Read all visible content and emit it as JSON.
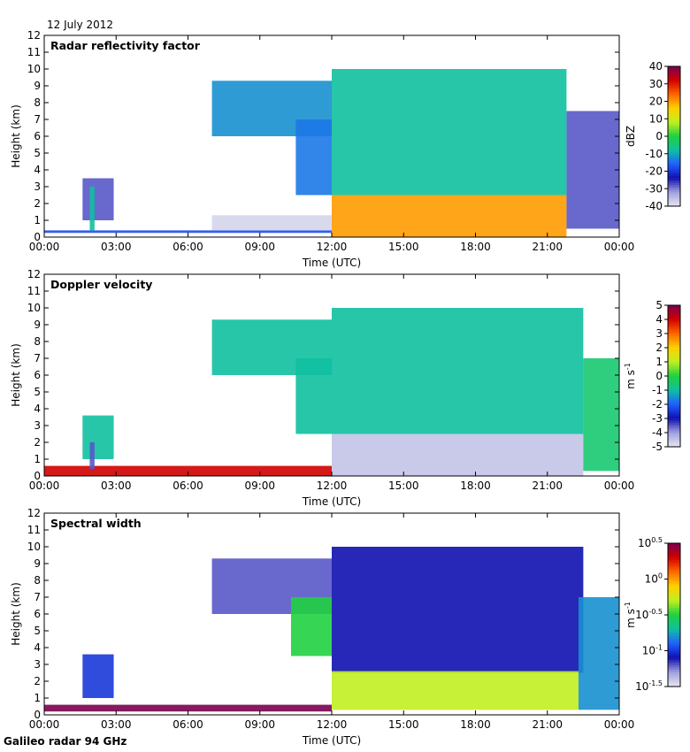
{
  "date_label": "12 July 2012",
  "footer_label": "Galileo radar 94 GHz",
  "chart_data": [
    {
      "type": "heatmap",
      "title": "Radar reflectivity factor",
      "xlabel": "Time (UTC)",
      "ylabel": "Height (km)",
      "x_ticks": [
        "00:00",
        "03:00",
        "06:00",
        "09:00",
        "12:00",
        "15:00",
        "18:00",
        "21:00",
        "00:00"
      ],
      "y_ticks": [
        "0",
        "1",
        "2",
        "3",
        "4",
        "5",
        "6",
        "7",
        "8",
        "9",
        "10",
        "11",
        "12"
      ],
      "ylim": [
        0,
        12
      ],
      "colorbar": {
        "label": "dBZ",
        "ticks": [
          "40",
          "30",
          "20",
          "10",
          "0",
          "-10",
          "-20",
          "-30",
          "-40"
        ],
        "range": [
          -40,
          40
        ],
        "colormap": [
          "#7a0050",
          "#d00000",
          "#ff6600",
          "#ffd000",
          "#c0f020",
          "#20d040",
          "#10c0a0",
          "#2060ff",
          "#1010b0",
          "#a0a0e0",
          "#e6e6f0"
        ]
      },
      "regions": [
        {
          "name": "surface-clutter",
          "t_start": 0.0,
          "t_end": 12.0,
          "h_bottom": 0.25,
          "h_top": 0.4,
          "value": -18
        },
        {
          "name": "clear-air-echo",
          "t_start": 7.0,
          "t_end": 12.0,
          "h_bottom": 0.4,
          "h_top": 1.3,
          "value": -38
        },
        {
          "name": "early-plume",
          "t_start": 1.6,
          "t_end": 2.9,
          "h_bottom": 1.0,
          "h_top": 3.5,
          "value": -28
        },
        {
          "name": "plume-core",
          "t_start": 1.9,
          "t_end": 2.1,
          "h_bottom": 0.4,
          "h_top": 3.0,
          "value": -8
        },
        {
          "name": "upper-cloud",
          "t_start": 7.0,
          "t_end": 12.0,
          "h_bottom": 6.0,
          "h_top": 9.3,
          "value": -12
        },
        {
          "name": "descending-cloud",
          "t_start": 10.5,
          "t_end": 12.0,
          "h_bottom": 2.5,
          "h_top": 7.0,
          "value": -14
        },
        {
          "name": "deep-precipitation",
          "t_start": 12.0,
          "t_end": 21.8,
          "h_bottom": 2.5,
          "h_top": 10.0,
          "value": -8
        },
        {
          "name": "melting-layer-rain",
          "t_start": 12.0,
          "t_end": 21.8,
          "h_bottom": 0.0,
          "h_top": 2.5,
          "value": 20
        },
        {
          "name": "late-cloud",
          "t_start": 21.8,
          "t_end": 24.0,
          "h_bottom": 0.5,
          "h_top": 7.5,
          "value": -28
        }
      ]
    },
    {
      "type": "heatmap",
      "title": "Doppler velocity",
      "xlabel": "Time (UTC)",
      "ylabel": "Height (km)",
      "x_ticks": [
        "00:00",
        "03:00",
        "06:00",
        "09:00",
        "12:00",
        "15:00",
        "18:00",
        "21:00",
        "00:00"
      ],
      "y_ticks": [
        "0",
        "1",
        "2",
        "3",
        "4",
        "5",
        "6",
        "7",
        "8",
        "9",
        "10",
        "11",
        "12"
      ],
      "ylim": [
        0,
        12
      ],
      "colorbar": {
        "label": "m s-1",
        "ticks": [
          "5",
          "4",
          "3",
          "2",
          "1",
          "0",
          "-1",
          "-2",
          "-3",
          "-4",
          "-5"
        ],
        "range": [
          -5,
          5
        ],
        "colormap": [
          "#7a0050",
          "#d00000",
          "#ff6600",
          "#ffd000",
          "#c0f020",
          "#20d040",
          "#10c0a0",
          "#2060ff",
          "#1010b0",
          "#a0a0e0",
          "#e6e6f0"
        ]
      },
      "regions": [
        {
          "name": "surface-clutter",
          "t_start": 0.0,
          "t_end": 12.0,
          "h_bottom": 0.0,
          "h_top": 0.6,
          "value": 4
        },
        {
          "name": "early-plume",
          "t_start": 1.6,
          "t_end": 2.9,
          "h_bottom": 1.0,
          "h_top": 3.6,
          "value": -1
        },
        {
          "name": "plume-core",
          "t_start": 1.9,
          "t_end": 2.1,
          "h_bottom": 0.4,
          "h_top": 2.0,
          "value": -3.5
        },
        {
          "name": "upper-cloud",
          "t_start": 7.0,
          "t_end": 12.0,
          "h_bottom": 6.0,
          "h_top": 9.3,
          "value": -1
        },
        {
          "name": "descending-cloud",
          "t_start": 10.5,
          "t_end": 12.0,
          "h_bottom": 2.5,
          "h_top": 7.0,
          "value": -1
        },
        {
          "name": "snow-above-melting",
          "t_start": 12.0,
          "t_end": 22.5,
          "h_bottom": 2.5,
          "h_top": 10.0,
          "value": -1
        },
        {
          "name": "rain-below-melting",
          "t_start": 12.0,
          "t_end": 22.5,
          "h_bottom": 0.0,
          "h_top": 2.5,
          "value": -4.5
        },
        {
          "name": "late-cloud",
          "t_start": 22.5,
          "t_end": 24.0,
          "h_bottom": 0.3,
          "h_top": 7.0,
          "value": -0.5
        }
      ]
    },
    {
      "type": "heatmap",
      "title": "Spectral width",
      "xlabel": "Time (UTC)",
      "ylabel": "Height (km)",
      "x_ticks": [
        "00:00",
        "03:00",
        "06:00",
        "09:00",
        "12:00",
        "15:00",
        "18:00",
        "21:00",
        "00:00"
      ],
      "y_ticks": [
        "0",
        "1",
        "2",
        "3",
        "4",
        "5",
        "6",
        "7",
        "8",
        "9",
        "10",
        "11",
        "12"
      ],
      "ylim": [
        0,
        12
      ],
      "colorbar": {
        "label": "m s-1",
        "ticks": [
          "10^0.5",
          "10^0",
          "10^-0.5",
          "10^-1",
          "10^-1.5"
        ],
        "range": [
          -1.5,
          0.5
        ],
        "scale": "log",
        "colormap": [
          "#7a0050",
          "#d00000",
          "#ff6600",
          "#ffd000",
          "#c0f020",
          "#20d040",
          "#10c0a0",
          "#2060ff",
          "#1010b0",
          "#a0a0e0",
          "#e6e6f0"
        ]
      },
      "regions": [
        {
          "name": "surface-clutter",
          "t_start": 0.0,
          "t_end": 12.0,
          "h_bottom": 0.2,
          "h_top": 0.6,
          "value": 0.5
        },
        {
          "name": "early-plume",
          "t_start": 1.6,
          "t_end": 2.9,
          "h_bottom": 1.0,
          "h_top": 3.6,
          "value": -1.0
        },
        {
          "name": "upper-cloud",
          "t_start": 7.0,
          "t_end": 12.0,
          "h_bottom": 6.0,
          "h_top": 9.3,
          "value": -1.2
        },
        {
          "name": "turbulent-layer",
          "t_start": 10.3,
          "t_end": 12.0,
          "h_bottom": 3.5,
          "h_top": 7.0,
          "value": -0.5
        },
        {
          "name": "snow-layer",
          "t_start": 12.0,
          "t_end": 22.5,
          "h_bottom": 2.5,
          "h_top": 10.0,
          "value": -1.1
        },
        {
          "name": "rain-layer",
          "t_start": 12.0,
          "t_end": 22.3,
          "h_bottom": 0.3,
          "h_top": 2.6,
          "value": -0.3
        },
        {
          "name": "late-cloud",
          "t_start": 22.3,
          "t_end": 24.0,
          "h_bottom": 0.3,
          "h_top": 7.0,
          "value": -0.8
        }
      ]
    }
  ]
}
